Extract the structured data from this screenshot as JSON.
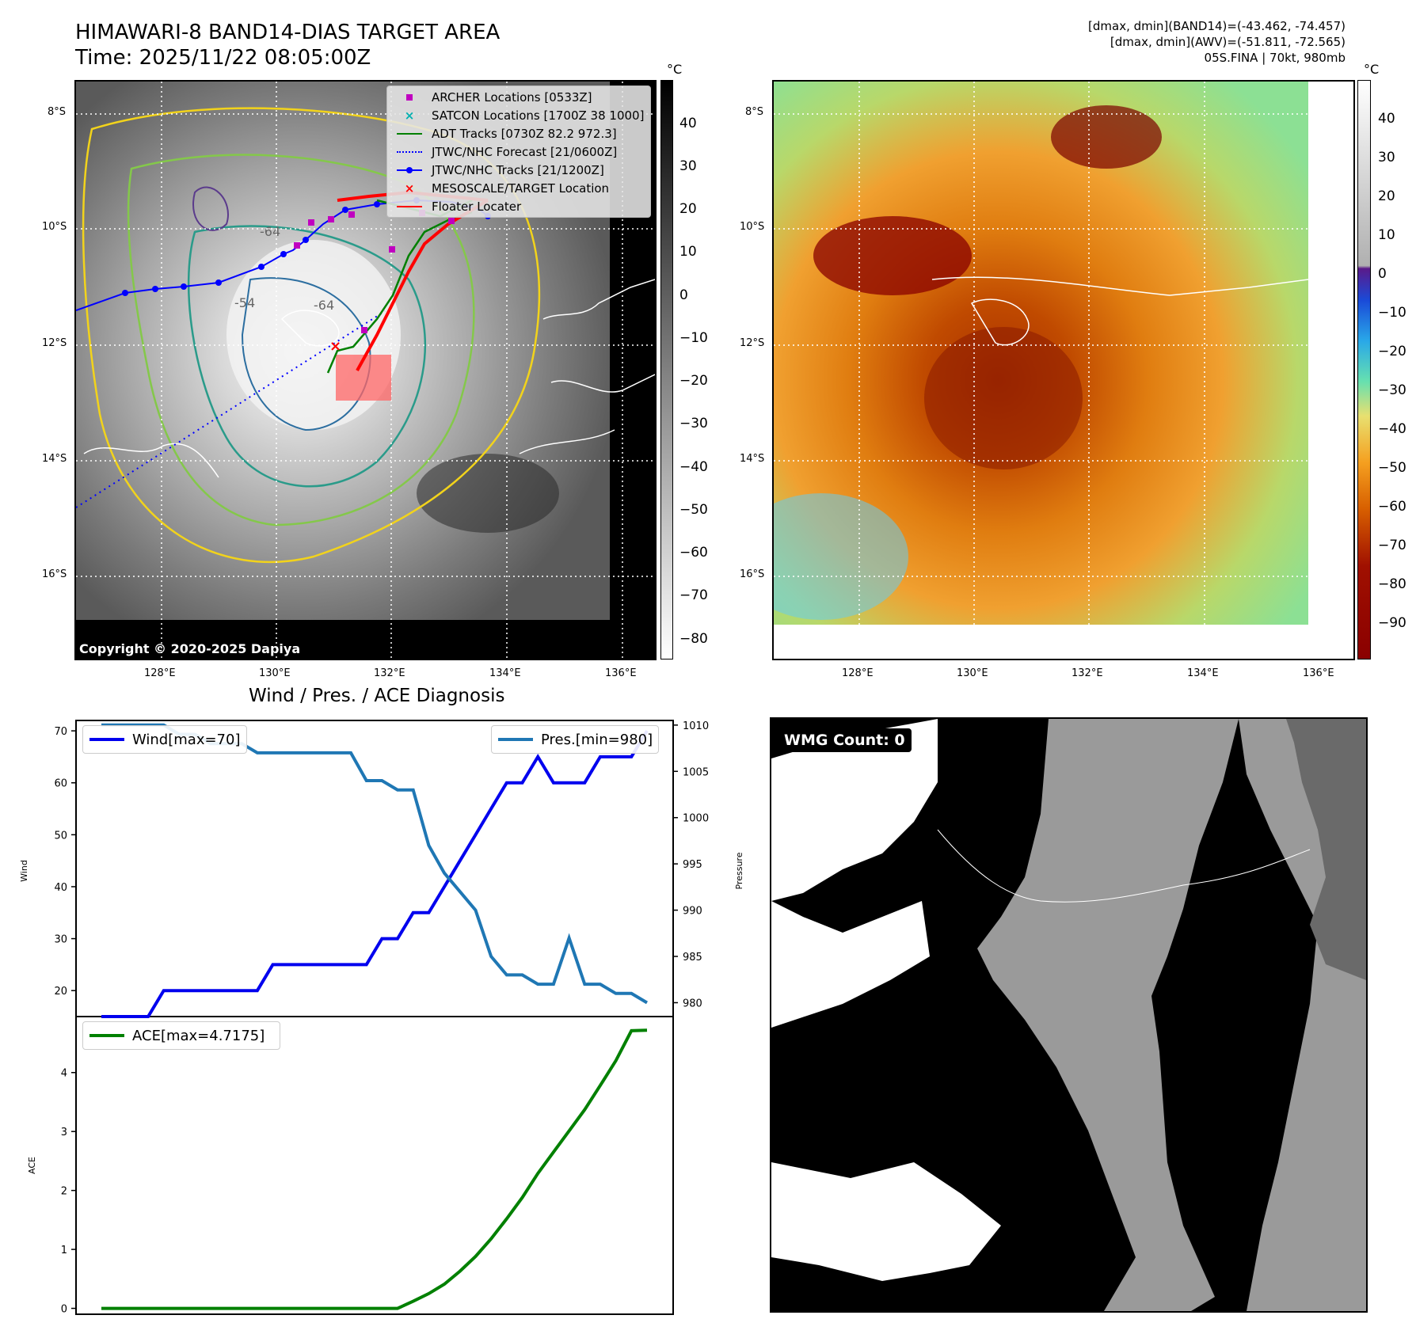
{
  "header": {
    "title_line1": "HIMAWARI-8 BAND14-DIAS TARGET AREA",
    "title_line2": "Time: 2025/11/22 08:05:00Z",
    "stats_line1": "[dmax, dmin](BAND14)=(-43.462, -74.457)",
    "stats_line2": "[dmax, dmin](AWV)=(-51.811, -72.565)",
    "stats_line3": "05S.FINA | 70kt, 980mb"
  },
  "colors": {
    "wind": "#0000ee",
    "pressure": "#1f77b4",
    "ace": "#008000",
    "adt": "#008000",
    "jtwc": "#0000ff",
    "archer": "#c000c0",
    "satcon": "#00b0b0",
    "floater": "#ff0000"
  },
  "map_left": {
    "unit": "°C",
    "copyright": "Copyright © 2020-2025 Dapiya",
    "lat_ticks": [
      "8°S",
      "10°S",
      "12°S",
      "14°S",
      "16°S"
    ],
    "lon_ticks": [
      "128°E",
      "130°E",
      "132°E",
      "134°E",
      "136°E"
    ],
    "colorbar_ticks": [
      "40",
      "30",
      "20",
      "10",
      "0",
      "−10",
      "−20",
      "−30",
      "−40",
      "−50",
      "−60",
      "−70",
      "−80"
    ],
    "contour_labels": [
      "-64",
      "-54",
      "-64"
    ],
    "legend": [
      {
        "label": "ARCHER Locations [0533Z]",
        "icon": "square-marker"
      },
      {
        "label": "SATCON Locations [1700Z 38 1000]",
        "icon": "x-marker"
      },
      {
        "label": "ADT Tracks [0730Z 82.2 972.3]",
        "icon": "line"
      },
      {
        "label": "JTWC/NHC Forecast [21/0600Z]",
        "icon": "dotted-line"
      },
      {
        "label": "JTWC/NHC Tracks [21/1200Z]",
        "icon": "line-dot"
      },
      {
        "label": "MESOSCALE/TARGET Location",
        "icon": "x-marker"
      },
      {
        "label": "Floater Locater",
        "icon": "line"
      }
    ]
  },
  "map_right": {
    "unit": "°C",
    "lat_ticks": [
      "8°S",
      "10°S",
      "12°S",
      "14°S",
      "16°S"
    ],
    "lon_ticks": [
      "128°E",
      "130°E",
      "132°E",
      "134°E",
      "136°E"
    ],
    "colorbar_ticks": [
      "40",
      "30",
      "20",
      "10",
      "0",
      "−10",
      "−20",
      "−30",
      "−40",
      "−50",
      "−60",
      "−70",
      "−80",
      "−90"
    ]
  },
  "wmg": {
    "label": "WMG Count: 0"
  },
  "chart_data": [
    {
      "type": "line",
      "title": "Wind / Pres. / ACE Diagnosis",
      "ylabel": "Wind",
      "ylabel_right": "Pressure",
      "ylim": [
        15,
        72
      ],
      "ylim_right": [
        978.5,
        1010.5
      ],
      "yticks": [
        20,
        30,
        40,
        50,
        60,
        70
      ],
      "yticks_right": [
        980,
        985,
        990,
        995,
        1000,
        1005,
        1010
      ],
      "x": [
        0,
        1,
        2,
        3,
        4,
        5,
        6,
        7,
        8,
        9,
        10,
        11,
        12,
        13,
        14,
        15,
        16,
        17,
        18,
        19,
        20,
        21,
        22,
        23,
        24,
        25,
        26,
        27,
        28,
        29,
        30,
        31,
        32,
        33,
        34,
        35
      ],
      "series": [
        {
          "name": "Wind",
          "axis": "left",
          "legend": "Wind[max=70]",
          "values": [
            15,
            15,
            15,
            15,
            20,
            20,
            20,
            20,
            20,
            20,
            20,
            25,
            25,
            25,
            25,
            25,
            25,
            25,
            30,
            30,
            35,
            35,
            40,
            45,
            50,
            55,
            60,
            60,
            65,
            60,
            60,
            60,
            65,
            65,
            65,
            70
          ]
        },
        {
          "name": "Pres.",
          "axis": "right",
          "legend": "Pres.[min=980]",
          "values": [
            1010,
            1010,
            1010,
            1010,
            1010,
            1009,
            1009,
            1008,
            1008,
            1008,
            1007,
            1007,
            1007,
            1007,
            1007,
            1007,
            1007,
            1004,
            1004,
            1003,
            1003,
            997,
            994,
            992,
            990,
            985,
            983,
            983,
            982,
            982,
            987,
            982,
            982,
            981,
            981,
            980
          ]
        }
      ]
    },
    {
      "type": "line",
      "ylabel": "ACE",
      "ylim": [
        -0.1,
        4.95
      ],
      "yticks": [
        0,
        1,
        2,
        3,
        4
      ],
      "x": [
        0,
        1,
        2,
        3,
        4,
        5,
        6,
        7,
        8,
        9,
        10,
        11,
        12,
        13,
        14,
        15,
        16,
        17,
        18,
        19,
        20,
        21,
        22,
        23,
        24,
        25,
        26,
        27,
        28,
        29,
        30,
        31,
        32,
        33,
        34,
        35
      ],
      "series": [
        {
          "name": "ACE",
          "legend": "ACE[max=4.7175]",
          "values": [
            0,
            0,
            0,
            0,
            0,
            0,
            0,
            0,
            0,
            0,
            0,
            0,
            0,
            0,
            0,
            0,
            0,
            0,
            0,
            0,
            0.12,
            0.25,
            0.41,
            0.63,
            0.88,
            1.18,
            1.52,
            1.88,
            2.29,
            2.65,
            3.01,
            3.37,
            3.78,
            4.2,
            4.71,
            4.7175
          ]
        }
      ]
    }
  ]
}
